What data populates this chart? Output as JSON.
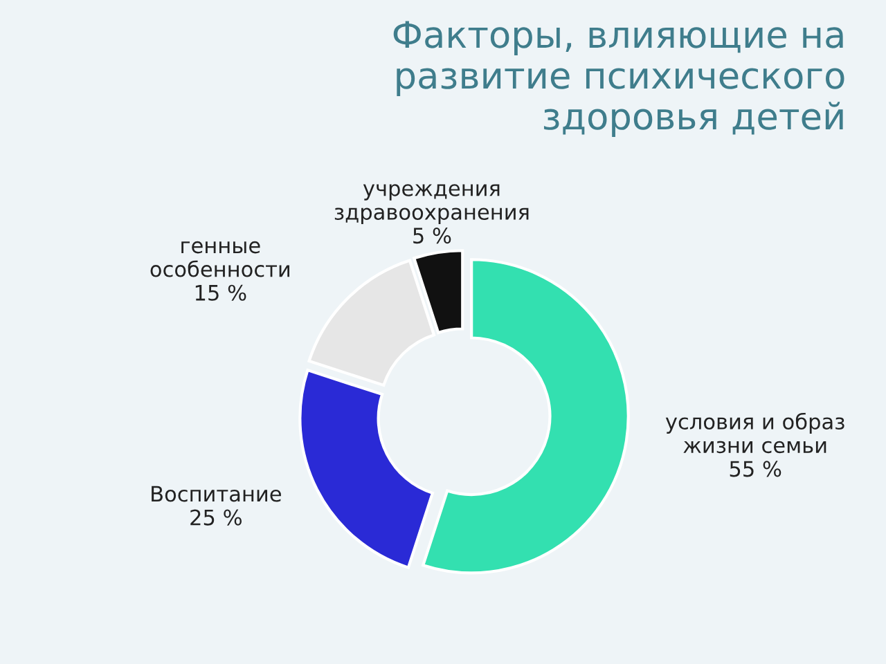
{
  "chart_data": {
    "type": "donut",
    "title": "Факторы, влияющие на\nразвитие психического\nздоровья детей",
    "categories": [
      "условия и образ\nжизни семьи",
      "Воспитание",
      "генные\nособенности",
      "учреждения\nздравоохранения"
    ],
    "values": [
      55,
      25,
      15,
      5
    ],
    "value_labels": [
      "55 %",
      "25 %",
      "15 %",
      "5 %"
    ],
    "colors": [
      "#33e0b0",
      "#2a2ad6",
      "#e6e6e6",
      "#111111"
    ],
    "legend": false
  }
}
